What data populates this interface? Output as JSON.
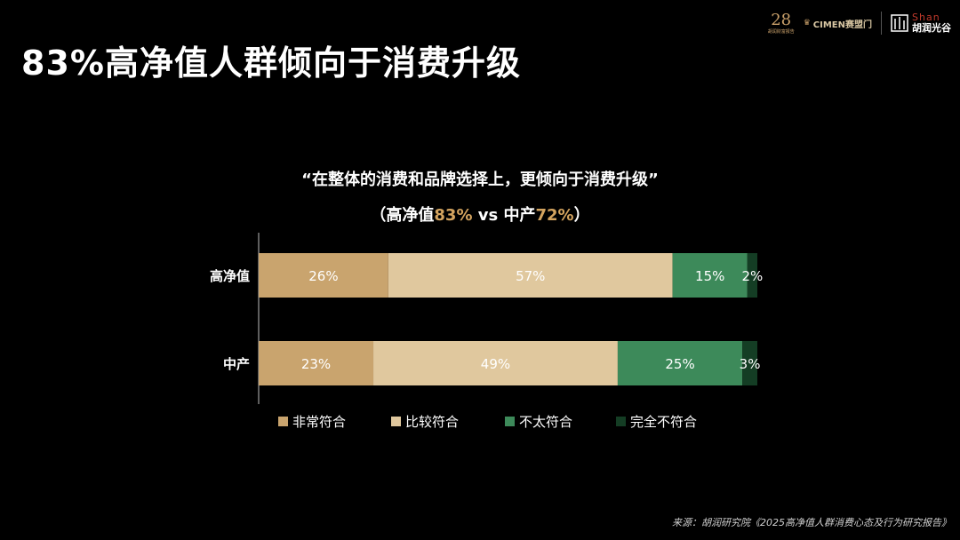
{
  "title": "83%高净值人群倾向于消费升级",
  "subtitle": {
    "line1": "“在整体的消费和品牌选择上，更倾向于消费升级”",
    "open": "（高净值",
    "hnw_pct": "83%",
    "vs": " vs 中产",
    "mid_pct": "72%",
    "close": "）"
  },
  "logos": {
    "anniv_number": "28",
    "anniv_text": "胡润财富报告",
    "cimen": "CIMEN赛盟门",
    "shan_en": "Shan",
    "shan_cn": "胡润光谷"
  },
  "chart_data": {
    "type": "bar",
    "orientation": "horizontal",
    "stacked": true,
    "percent": true,
    "categories": [
      "高净值",
      "中产"
    ],
    "series": [
      {
        "name": "非常符合",
        "values": [
          26,
          23
        ],
        "color": "#c9a46e",
        "label_color": "#ffffff"
      },
      {
        "name": "比较符合",
        "values": [
          57,
          49
        ],
        "color": "#e0c89e",
        "label_color": "#ffffff"
      },
      {
        "name": "不太符合",
        "values": [
          15,
          25
        ],
        "color": "#3d8a5a",
        "label_color": "#ffffff"
      },
      {
        "name": "完全不符合",
        "values": [
          2,
          3
        ],
        "color": "#143d24",
        "label_color": "#ffffff"
      }
    ],
    "xlim": [
      0,
      100
    ],
    "legend": "bottom",
    "grid": false
  },
  "source": "来源：胡润研究院《2025高净值人群消费心态及行为研究报告》"
}
